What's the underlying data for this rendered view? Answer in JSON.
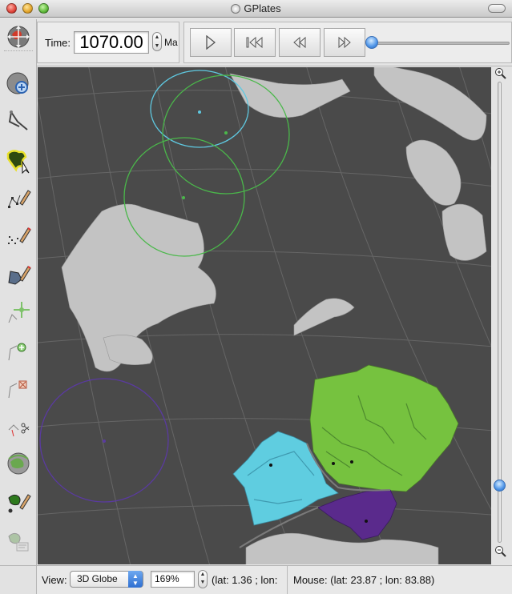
{
  "window": {
    "title": "GPlates"
  },
  "time": {
    "label": "Time:",
    "value": "1070.00",
    "unit": "Ma"
  },
  "animation": {
    "buttons": [
      {
        "name": "play-button",
        "icon": "play-icon"
      },
      {
        "name": "seek-beginning-button",
        "icon": "seek-beginning-icon"
      },
      {
        "name": "step-back-button",
        "icon": "step-back-icon"
      },
      {
        "name": "step-forward-button",
        "icon": "step-forward-icon"
      }
    ],
    "slider_fraction": 0.0
  },
  "tools": [
    "drag-globe-tool-icon",
    "zoom-globe-tool-icon",
    "measure-distance-tool-icon",
    "choose-feature-tool-icon",
    "digitise-polyline-tool-icon",
    "digitise-multipoint-tool-icon",
    "digitise-polygon-tool-icon",
    "move-vertex-tool-icon",
    "insert-vertex-tool-icon",
    "delete-vertex-tool-icon",
    "split-feature-tool-icon",
    "manipulate-pole-tool-icon",
    "build-topology-tool-icon",
    "edit-topology-tool-icon"
  ],
  "zoom_slider": {
    "level_fraction": 0.89
  },
  "status": {
    "view_label": "View:",
    "view_value": "3D Globe",
    "zoom_value": "169%",
    "camera_text": "(lat: 1.36 ; lon:",
    "mouse_text": "Mouse: (lat: 23.87 ; lon: 83.88)"
  },
  "colors": {
    "globe_background": "#4a4a4a",
    "landmass": "#c3c3c3",
    "green_plate": "#76c23f",
    "cyan_plate": "#5fcde0",
    "purple_plate": "#5a2a8c",
    "grid": "#6b6b6b",
    "accent_blue": "#3d86e0"
  }
}
